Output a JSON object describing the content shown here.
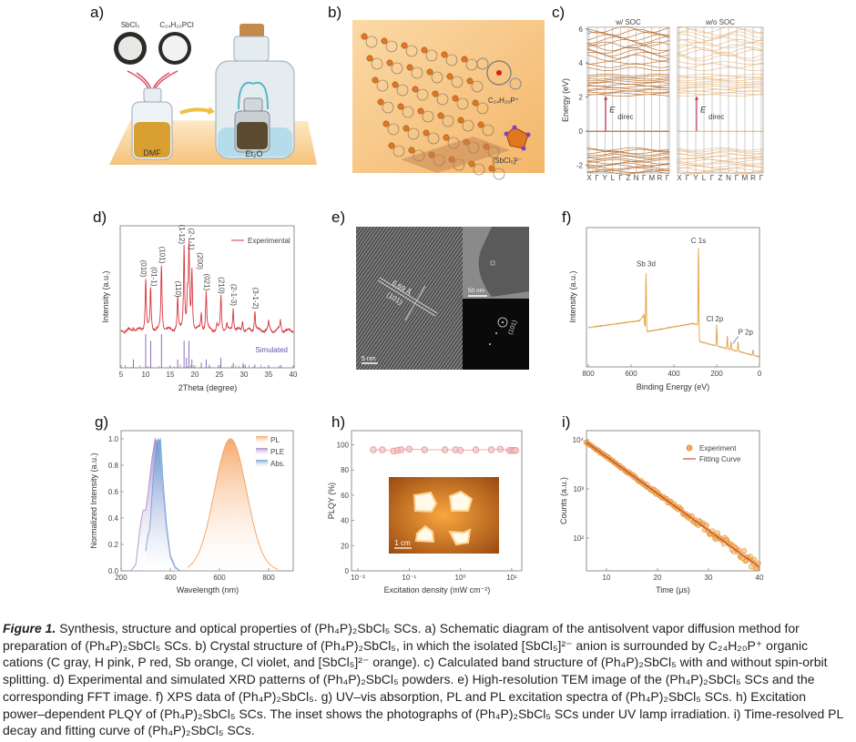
{
  "panels": {
    "a": {
      "label": "a)",
      "reagent_1": "SbCl₃",
      "reagent_2": "C₂₄H₂₀PCl",
      "solvent": "DMF",
      "antisolvent": "Et₂O"
    },
    "b": {
      "label": "b)",
      "cation": "C₂₄H₂₀P⁺",
      "anion": "[SbCl₅]²⁻"
    },
    "c": {
      "label": "c)"
    },
    "d": {
      "label": "d)"
    },
    "e": {
      "label": "e)",
      "d_spacing": "6.69 Å",
      "plane": "(101)",
      "scale_main": "5 nm",
      "scale_inset": "50 nm",
      "fft_plane": "(101)"
    },
    "f": {
      "label": "f)"
    },
    "g": {
      "label": "g)"
    },
    "h": {
      "label": "h)",
      "inset_scale": "1 cm"
    },
    "i": {
      "label": "i)"
    }
  },
  "colors": {
    "experimental": "#d9363e",
    "simulated": "#6a4fa8",
    "xps": "#e0a040",
    "pl": "#f0a060",
    "ple": "#b090d0",
    "abs": "#70a8d8",
    "plqy": "#e89898",
    "decay_points": "#e8902a",
    "fit": "#b0303a",
    "band_soc": "#b8651e",
    "band_nosoc": "#e8a860",
    "arrow": "#c0304a"
  },
  "chart_data": [
    {
      "panel": "c",
      "type": "line",
      "titles": [
        "w/ SOC",
        "w/o SOC"
      ],
      "ylabel": "Energy (eV)",
      "ylim": [
        -2.5,
        6
      ],
      "yticks": [
        "-2",
        "0",
        "2",
        "4",
        "6"
      ],
      "kpoints": [
        "X",
        "Γ",
        "Y",
        "L",
        "Γ",
        "Z",
        "N",
        "Γ",
        "M",
        "R",
        "Γ"
      ],
      "band_edges": {
        "vbm": 0,
        "cbm": 2.05
      },
      "annotation": {
        "main": "E",
        "sub": "direc"
      }
    },
    {
      "panel": "d",
      "type": "line",
      "xlabel": "2Theta (degree)",
      "ylabel": "Intensity (a.u.)",
      "xlim": [
        5,
        40
      ],
      "xticks": [
        5,
        10,
        15,
        20,
        25,
        30,
        35,
        40
      ],
      "legend": [
        "Experimental"
      ],
      "simulated_label": "Simulated",
      "experimental_peaks": [
        {
          "x": 7.5,
          "y": 0.05
        },
        {
          "x": 10.0,
          "y": 0.61,
          "label": "(010)"
        },
        {
          "x": 11.0,
          "y": 0.5,
          "label": "(01-1)"
        },
        {
          "x": 13.2,
          "y": 0.77,
          "label": "(101)"
        },
        {
          "x": 16.5,
          "y": 0.37,
          "label": "(110)"
        },
        {
          "x": 17.8,
          "y": 1.0,
          "label": "(1-12)"
        },
        {
          "x": 18.5,
          "y": 0.35
        },
        {
          "x": 18.8,
          "y": 0.93,
          "label": "(2-1-1)"
        },
        {
          "x": 19.4,
          "y": 0.7,
          "label": "(200)"
        },
        {
          "x": 21.3,
          "y": 0.2
        },
        {
          "x": 22.3,
          "y": 0.45,
          "label": "(021)"
        },
        {
          "x": 24.5,
          "y": 0.06
        },
        {
          "x": 25.3,
          "y": 0.41,
          "label": "(210)"
        },
        {
          "x": 26.5,
          "y": 0.08
        },
        {
          "x": 27.8,
          "y": 0.27,
          "label": "(2-1-3)"
        },
        {
          "x": 29.7,
          "y": 0.12
        },
        {
          "x": 32.2,
          "y": 0.23,
          "label": "(3-1-2)"
        },
        {
          "x": 35.0,
          "y": 0.1
        },
        {
          "x": 37.4,
          "y": 0.12
        }
      ],
      "simulated_peaks": [
        {
          "x": 7.5,
          "y": 0.25
        },
        {
          "x": 10.0,
          "y": 1.0
        },
        {
          "x": 11.0,
          "y": 0.8
        },
        {
          "x": 13.2,
          "y": 1.0
        },
        {
          "x": 16.5,
          "y": 0.25
        },
        {
          "x": 17.8,
          "y": 0.8
        },
        {
          "x": 18.3,
          "y": 0.3
        },
        {
          "x": 18.8,
          "y": 0.8
        },
        {
          "x": 19.4,
          "y": 0.25
        },
        {
          "x": 21.3,
          "y": 0.15
        },
        {
          "x": 22.3,
          "y": 0.25
        },
        {
          "x": 25.3,
          "y": 0.3
        },
        {
          "x": 27.8,
          "y": 0.15
        },
        {
          "x": 29.8,
          "y": 0.15
        },
        {
          "x": 32.2,
          "y": 0.1
        },
        {
          "x": 35.0,
          "y": 0.08
        },
        {
          "x": 37.5,
          "y": 0.08
        }
      ]
    },
    {
      "panel": "f",
      "type": "line",
      "xlabel": "Binding Energy (eV)",
      "ylabel": "Intensity (a.u.)",
      "xlim": [
        800,
        0
      ],
      "xticks": [
        800,
        600,
        400,
        200,
        0
      ],
      "background": [
        [
          800,
          0.28
        ],
        [
          560,
          0.33
        ],
        [
          545,
          0.36
        ],
        [
          530,
          0.25
        ],
        [
          310,
          0.31
        ],
        [
          290,
          0.3
        ],
        [
          280,
          0.18
        ],
        [
          0,
          0.07
        ]
      ],
      "peaks": [
        {
          "x": 540,
          "y": 0.38
        },
        {
          "x": 530,
          "y": 0.67,
          "label": "Sb 3d"
        },
        {
          "x": 285,
          "y": 0.85,
          "label": "C 1s"
        },
        {
          "x": 200,
          "y": 0.3,
          "label": "Cl 2p"
        },
        {
          "x": 150,
          "y": 0.22
        },
        {
          "x": 133,
          "y": 0.18,
          "label": "P 2p"
        },
        {
          "x": 100,
          "y": 0.18
        },
        {
          "x": 30,
          "y": 0.12
        }
      ]
    },
    {
      "panel": "g",
      "type": "area",
      "xlabel": "Wavelength (nm)",
      "ylabel": "Normalized Intensity (a.u.)",
      "xlim": [
        200,
        900
      ],
      "ylim": [
        0,
        1.05
      ],
      "xticks": [
        200,
        400,
        600,
        800
      ],
      "yticks": [
        "0.0",
        "0.2",
        "0.4",
        "0.6",
        "0.8",
        "1.0"
      ],
      "series": [
        {
          "name": "PL",
          "peak": 645,
          "x": [
            490,
            520,
            560,
            600,
            645,
            690,
            730,
            770,
            800,
            835
          ],
          "y": [
            0.0,
            0.06,
            0.35,
            0.76,
            1.0,
            0.76,
            0.35,
            0.1,
            0.03,
            0.0
          ]
        },
        {
          "name": "PLE",
          "x": [
            240,
            260,
            275,
            285,
            290,
            300,
            310,
            325,
            338,
            345,
            355,
            370,
            385,
            400,
            420,
            440
          ],
          "y": [
            0,
            0.05,
            0.3,
            0.42,
            0.46,
            0.46,
            0.6,
            0.85,
            1.0,
            0.98,
            0.9,
            0.6,
            0.3,
            0.1,
            0.02,
            0
          ]
        },
        {
          "name": "Abs.",
          "x": [
            300,
            305,
            310,
            315,
            320,
            330,
            340,
            350,
            355,
            360,
            370,
            385,
            400,
            420,
            440
          ],
          "y": [
            0.15,
            0.22,
            0.28,
            0.3,
            0.4,
            0.7,
            0.9,
            1.0,
            0.98,
            1.0,
            0.7,
            0.35,
            0.12,
            0.03,
            0
          ]
        }
      ],
      "legend": "top-right"
    },
    {
      "panel": "h",
      "type": "scatter",
      "xlabel": "Excitation density (mW cm⁻²)",
      "ylabel": "PLQY (%)",
      "xscale": "log",
      "xlim": [
        0.01,
        20
      ],
      "ylim": [
        0,
        110
      ],
      "xticks": [
        "10⁻²",
        "10⁻¹",
        "10⁰",
        "10¹"
      ],
      "yticks": [
        0,
        20,
        40,
        60,
        80,
        100
      ],
      "x": [
        0.02,
        0.03,
        0.05,
        0.06,
        0.07,
        0.1,
        0.2,
        0.5,
        0.8,
        1,
        2,
        4,
        6,
        9,
        10,
        11,
        12
      ],
      "y": [
        96,
        96,
        95,
        95.5,
        96,
        96.5,
        96,
        96,
        96,
        95.5,
        96,
        96,
        96.5,
        95.5,
        95.5,
        95.5,
        95.5
      ]
    },
    {
      "panel": "i",
      "type": "scatter",
      "xlabel": "Time (μs)",
      "ylabel": "Counts (a.u.)",
      "yscale": "log",
      "xlim": [
        6,
        40
      ],
      "ylim": [
        20,
        15000
      ],
      "xticks": [
        10,
        20,
        30,
        40
      ],
      "yticks": [
        "10²",
        "10³",
        "10⁴"
      ],
      "legend": [
        "Experiment",
        "Fitting Curve"
      ],
      "fit": {
        "amplitude_at_6us": 9000,
        "decay_time_us": 5.8
      },
      "x": [
        6,
        10,
        15,
        20,
        25,
        30,
        35,
        40
      ],
      "y": [
        9000,
        4580,
        1940,
        815,
        345,
        146,
        62,
        26
      ]
    }
  ],
  "caption": {
    "figure_number": "Figure 1.",
    "lines": [
      " Synthesis, structure and optical properties of (Ph₄P)₂SbCl₅ SCs. a) Schematic diagram of the antisolvent vapor diffusion method for",
      "preparation of (Ph₄P)₂SbCl₅ SCs. b) Crystal structure of (Ph₄P)₂SbCl₅, in which the isolated [SbCl₅]²⁻ anion is surrounded by C₂₄H₂₀P⁺ organic",
      "cations (C gray, H pink, P red, Sb orange, Cl violet, and [SbCl₅]²⁻ orange). c) Calculated band structure of (Ph₄P)₂SbCl₅ with and without spin-orbit",
      "splitting. d) Experimental and simulated XRD patterns of (Ph₄P)₂SbCl₅ powders. e) High-resolution TEM image of the (Ph₄P)₂SbCl₅ SCs and the",
      "corresponding FFT image. f) XPS data of (Ph₄P)₂SbCl₅. g) UV–vis absorption, PL and PL excitation spectra of (Ph₄P)₂SbCl₅ SCs. h) Excitation",
      "power–dependent PLQY of (Ph₄P)₂SbCl₅ SCs. The inset shows the photographs of (Ph₄P)₂SbCl₅ SCs under UV lamp irradiation. i) Time-resolved PL",
      "decay and fitting curve of (Ph₄P)₂SbCl₅ SCs."
    ]
  }
}
